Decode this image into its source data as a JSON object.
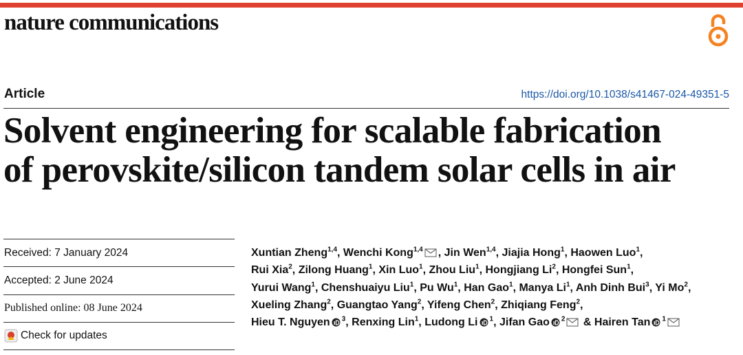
{
  "header": {
    "journal": "nature communications",
    "article_type": "Article",
    "doi": "https://doi.org/10.1038/s41467-024-49351-5"
  },
  "title": {
    "lines": [
      "Solvent engineering for scalable fabrication",
      "of perovskite/silicon tandem solar cells in air"
    ]
  },
  "dates": {
    "received": "Received: 7 January 2024",
    "accepted": "Accepted: 2 June 2024",
    "published": "Published online: 08 June 2024",
    "updates": "Check for updates"
  },
  "authors": {
    "separator": ",",
    "conjunction": "&",
    "lines": [
      [
        {
          "name": "Xuntian Zheng",
          "aff": "1,4"
        },
        {
          "name": "Wenchi Kong",
          "aff": "1,4",
          "email": true
        },
        {
          "name": "Jin Wen",
          "aff": "1,4"
        },
        {
          "name": "Jiajia Hong",
          "aff": "1"
        },
        {
          "name": "Haowen Luo",
          "aff": "1"
        }
      ],
      [
        {
          "name": "Rui Xia",
          "aff": "2"
        },
        {
          "name": "Zilong Huang",
          "aff": "1"
        },
        {
          "name": "Xin Luo",
          "aff": "1"
        },
        {
          "name": "Zhou Liu",
          "aff": "1"
        },
        {
          "name": "Hongjiang Li",
          "aff": "2"
        },
        {
          "name": "Hongfei Sun",
          "aff": "1"
        }
      ],
      [
        {
          "name": "Yurui Wang",
          "aff": "1"
        },
        {
          "name": "Chenshuaiyu Liu",
          "aff": "1"
        },
        {
          "name": "Pu Wu",
          "aff": "1"
        },
        {
          "name": "Han Gao",
          "aff": "1"
        },
        {
          "name": "Manya Li",
          "aff": "1"
        },
        {
          "name": "Anh Dinh Bui",
          "aff": "3"
        },
        {
          "name": "Yi Mo",
          "aff": "2"
        }
      ],
      [
        {
          "name": "Xueling Zhang",
          "aff": "2"
        },
        {
          "name": "Guangtao Yang",
          "aff": "2"
        },
        {
          "name": "Yifeng Chen",
          "aff": "2"
        },
        {
          "name": "Zhiqiang Feng",
          "aff": "2"
        }
      ],
      [
        {
          "name": "Hieu T. Nguyen",
          "aff": "3",
          "orcid": true
        },
        {
          "name": "Renxing Lin",
          "aff": "1"
        },
        {
          "name": "Ludong Li",
          "aff": "1",
          "orcid": true
        },
        {
          "name": "Jifan Gao",
          "aff": "2",
          "orcid": true,
          "email": true
        },
        {
          "name": "Hairen Tan",
          "aff": "1",
          "orcid": true,
          "email": true
        }
      ]
    ]
  }
}
